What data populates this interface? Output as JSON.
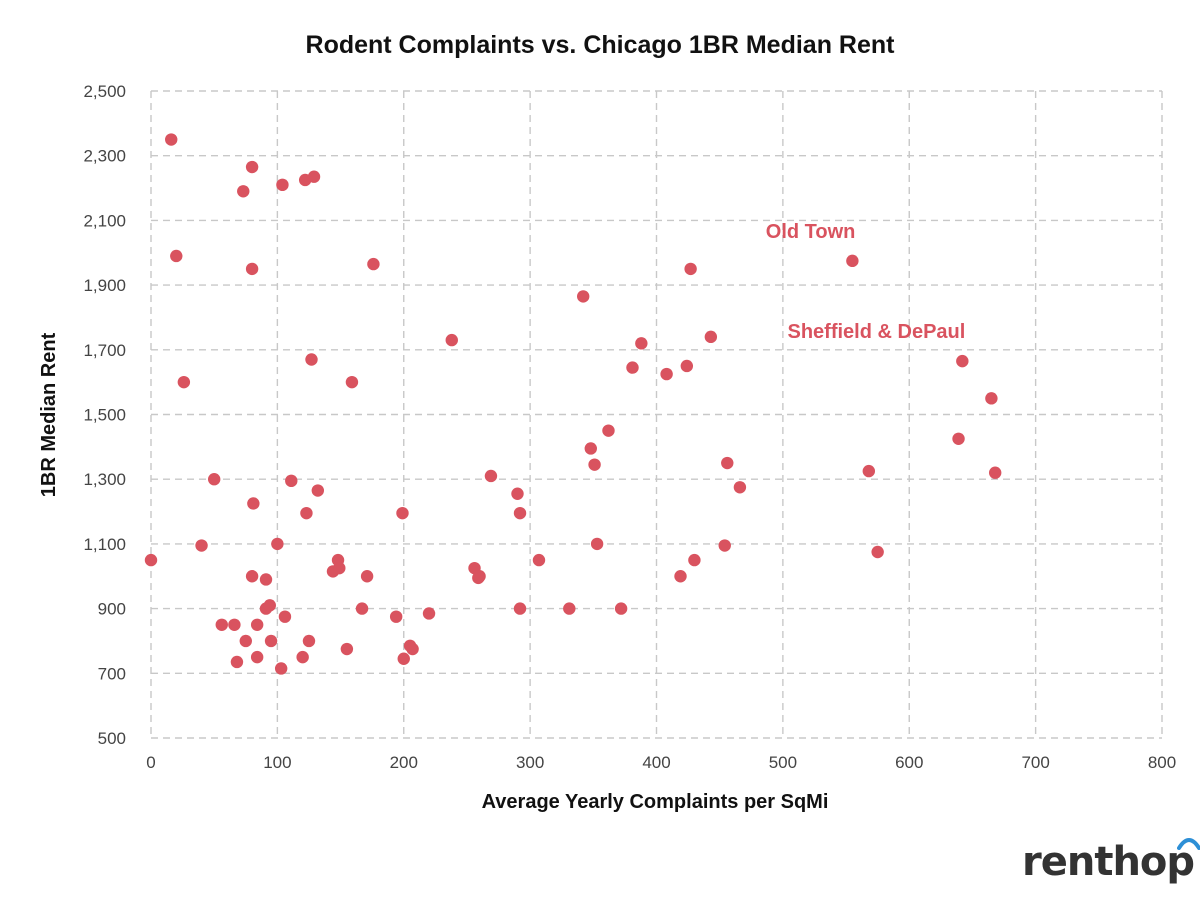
{
  "chart_data": {
    "type": "scatter",
    "title": "Rodent Complaints vs. Chicago 1BR Median Rent",
    "xlabel": "Average Yearly Complaints per SqMi",
    "ylabel": "1BR Median Rent",
    "xlim": [
      0,
      800
    ],
    "ylim": [
      500,
      2500
    ],
    "x_ticks": [
      0,
      100,
      200,
      300,
      400,
      500,
      600,
      700,
      800
    ],
    "x_tick_labels": [
      "0",
      "100",
      "200",
      "300",
      "400",
      "500",
      "600",
      "700",
      "800"
    ],
    "y_ticks": [
      500,
      700,
      900,
      1100,
      1300,
      1500,
      1700,
      1900,
      2100,
      2300,
      2500
    ],
    "y_tick_labels": [
      "500",
      "700",
      "900",
      "1,100",
      "1,300",
      "1,500",
      "1,700",
      "1,900",
      "2,100",
      "2,300",
      "2,500"
    ],
    "grid": true,
    "marker_color": "#d9535f",
    "annotations": [
      {
        "text": "Old Town",
        "x": 555,
        "y": 1975
      },
      {
        "text": "Sheffield & DePaul",
        "x": 642,
        "y": 1665
      }
    ],
    "points": [
      [
        0,
        1050
      ],
      [
        16,
        2350
      ],
      [
        20,
        1990
      ],
      [
        26,
        1600
      ],
      [
        40,
        1095
      ],
      [
        50,
        1300
      ],
      [
        56,
        850
      ],
      [
        66,
        850
      ],
      [
        68,
        735
      ],
      [
        73,
        2190
      ],
      [
        75,
        800
      ],
      [
        80,
        2265
      ],
      [
        80,
        1950
      ],
      [
        81,
        1225
      ],
      [
        80,
        1000
      ],
      [
        84,
        850
      ],
      [
        84,
        750
      ],
      [
        91,
        990
      ],
      [
        91,
        900
      ],
      [
        94,
        910
      ],
      [
        95,
        800
      ],
      [
        100,
        1100
      ],
      [
        103,
        715
      ],
      [
        104,
        2210
      ],
      [
        106,
        875
      ],
      [
        111,
        1295
      ],
      [
        120,
        750
      ],
      [
        122,
        2225
      ],
      [
        123,
        1195
      ],
      [
        125,
        800
      ],
      [
        127,
        1670
      ],
      [
        129,
        2235
      ],
      [
        132,
        1265
      ],
      [
        144,
        1015
      ],
      [
        148,
        1050
      ],
      [
        149,
        1025
      ],
      [
        155,
        775
      ],
      [
        159,
        1600
      ],
      [
        167,
        900
      ],
      [
        171,
        1000
      ],
      [
        176,
        1965
      ],
      [
        194,
        875
      ],
      [
        199,
        1195
      ],
      [
        200,
        745
      ],
      [
        205,
        785
      ],
      [
        207,
        775
      ],
      [
        220,
        885
      ],
      [
        238,
        1730
      ],
      [
        256,
        1025
      ],
      [
        259,
        995
      ],
      [
        260,
        1000
      ],
      [
        269,
        1310
      ],
      [
        290,
        1255
      ],
      [
        292,
        1195
      ],
      [
        292,
        900
      ],
      [
        307,
        1050
      ],
      [
        331,
        900
      ],
      [
        342,
        1865
      ],
      [
        348,
        1395
      ],
      [
        351,
        1345
      ],
      [
        353,
        1100
      ],
      [
        362,
        1450
      ],
      [
        372,
        900
      ],
      [
        381,
        1645
      ],
      [
        388,
        1720
      ],
      [
        408,
        1625
      ],
      [
        419,
        1000
      ],
      [
        424,
        1650
      ],
      [
        427,
        1950
      ],
      [
        430,
        1050
      ],
      [
        443,
        1740
      ],
      [
        454,
        1095
      ],
      [
        456,
        1350
      ],
      [
        466,
        1275
      ],
      [
        555,
        1975
      ],
      [
        568,
        1325
      ],
      [
        575,
        1075
      ],
      [
        639,
        1425
      ],
      [
        642,
        1665
      ],
      [
        665,
        1550
      ],
      [
        668,
        1320
      ]
    ]
  },
  "logo": {
    "text": "renthop",
    "color": "#333333",
    "arc_color": "#2d8fd6"
  }
}
